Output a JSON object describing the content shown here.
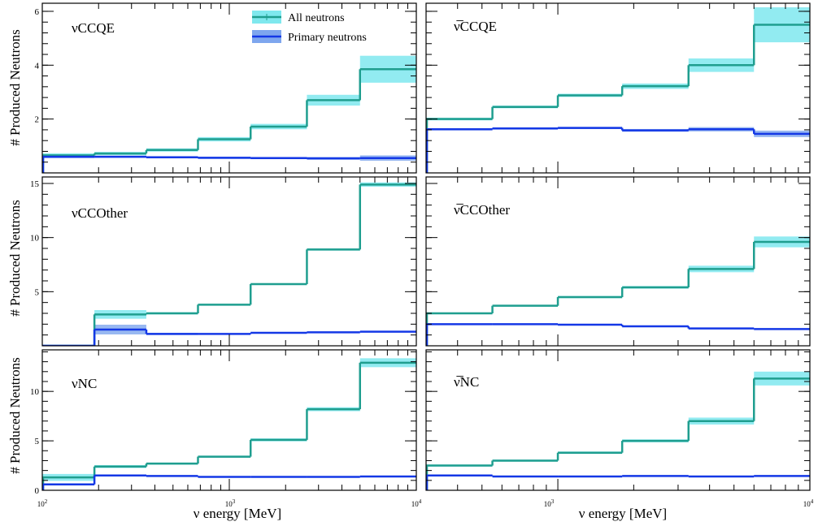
{
  "colors": {
    "all_line": "#1f9e8f",
    "all_band": "#7fe8ee",
    "primary_line": "#1438e6",
    "primary_band": "#7ea6ee"
  },
  "legend": {
    "all_label": "All neutrons",
    "primary_label": "Primary neutrons"
  },
  "axes": {
    "ylabel": "# Produced Neutrons",
    "xlabel": "ν energy [MeV]",
    "x_tick_labels": [
      "10",
      "10",
      "10"
    ],
    "x_tick_exponents": [
      "2",
      "3",
      "4"
    ]
  },
  "chart_data": [
    {
      "type": "line",
      "title": "νCCQE",
      "xscale": "log",
      "xlim": [
        100,
        10000
      ],
      "ylim": [
        0,
        6.3
      ],
      "yticks": [
        2,
        4,
        6
      ],
      "ytick_labels": [
        "2",
        "4",
        "6"
      ],
      "bin_edges": [
        100,
        190,
        360,
        680,
        1300,
        2600,
        5000,
        10000
      ],
      "series": [
        {
          "name": "All neutrons",
          "values": [
            0.65,
            0.72,
            0.85,
            1.25,
            1.72,
            2.7,
            3.85
          ],
          "err": [
            0.08,
            0.06,
            0.06,
            0.08,
            0.1,
            0.2,
            0.5
          ]
        },
        {
          "name": "Primary neutrons",
          "values": [
            0.6,
            0.6,
            0.58,
            0.56,
            0.55,
            0.54,
            0.55
          ],
          "err": [
            0.05,
            0.04,
            0.04,
            0.04,
            0.04,
            0.05,
            0.1
          ]
        }
      ]
    },
    {
      "type": "line",
      "title": "ν̅CCQE",
      "xscale": "log",
      "xlim": [
        300,
        10000
      ],
      "ylim": [
        0,
        6.3
      ],
      "yticks": [
        2,
        4,
        6
      ],
      "ytick_labels": [],
      "bin_edges": [
        300,
        550,
        1000,
        1800,
        3300,
        6000,
        10000
      ],
      "series": [
        {
          "name": "All neutrons",
          "values": [
            2.0,
            2.45,
            2.88,
            3.22,
            4.0,
            5.5
          ],
          "err": [
            0.05,
            0.05,
            0.06,
            0.1,
            0.25,
            0.65
          ]
        },
        {
          "name": "Primary neutrons",
          "values": [
            1.62,
            1.65,
            1.67,
            1.58,
            1.62,
            1.45
          ],
          "err": [
            0.04,
            0.04,
            0.04,
            0.05,
            0.08,
            0.12
          ]
        }
      ]
    },
    {
      "type": "line",
      "title": "νCCOther",
      "xscale": "log",
      "xlim": [
        100,
        10000
      ],
      "ylim": [
        0,
        15.6
      ],
      "yticks": [
        5,
        10,
        15
      ],
      "ytick_labels": [
        "5",
        "10",
        "15"
      ],
      "bin_edges": [
        100,
        190,
        360,
        680,
        1300,
        2600,
        5000,
        10000
      ],
      "series": [
        {
          "name": "All neutrons",
          "values": [
            0,
            2.9,
            3.0,
            3.8,
            5.7,
            8.9,
            14.9
          ],
          "err": [
            0,
            0.4,
            0.1,
            0.08,
            0.08,
            0.1,
            0.2
          ]
        },
        {
          "name": "Primary neutrons",
          "values": [
            0,
            1.5,
            1.1,
            1.1,
            1.2,
            1.25,
            1.3
          ],
          "err": [
            0,
            0.45,
            0.1,
            0.05,
            0.05,
            0.05,
            0.05
          ]
        }
      ]
    },
    {
      "type": "line",
      "title": "ν̅CCOther",
      "xscale": "log",
      "xlim": [
        300,
        10000
      ],
      "ylim": [
        0,
        15.6
      ],
      "yticks": [
        5,
        10,
        15
      ],
      "ytick_labels": [],
      "bin_edges": [
        300,
        550,
        1000,
        1800,
        3300,
        6000,
        10000
      ],
      "series": [
        {
          "name": "All neutrons",
          "values": [
            3.0,
            3.7,
            4.5,
            5.4,
            7.1,
            9.6
          ],
          "err": [
            0.08,
            0.08,
            0.1,
            0.12,
            0.3,
            0.5
          ]
        },
        {
          "name": "Primary neutrons",
          "values": [
            2.0,
            2.0,
            1.95,
            1.8,
            1.6,
            1.55
          ],
          "err": [
            0.05,
            0.05,
            0.05,
            0.05,
            0.06,
            0.06
          ]
        }
      ]
    },
    {
      "type": "line",
      "title": "νNC",
      "xscale": "log",
      "xlim": [
        100,
        10000
      ],
      "ylim": [
        0,
        14.2
      ],
      "yticks": [
        0,
        5,
        10
      ],
      "ytick_labels": [
        "0",
        "5",
        "10"
      ],
      "bin_edges": [
        100,
        190,
        360,
        680,
        1300,
        2600,
        5000,
        10000
      ],
      "series": [
        {
          "name": "All neutrons",
          "values": [
            1.3,
            2.4,
            2.7,
            3.4,
            5.1,
            8.2,
            12.9
          ],
          "err": [
            0.35,
            0.15,
            0.1,
            0.1,
            0.15,
            0.2,
            0.45
          ]
        },
        {
          "name": "Primary neutrons",
          "values": [
            0.6,
            1.5,
            1.45,
            1.35,
            1.35,
            1.35,
            1.4
          ],
          "err": [
            0.1,
            0.08,
            0.05,
            0.05,
            0.05,
            0.05,
            0.05
          ]
        }
      ]
    },
    {
      "type": "line",
      "title": "ν̅NC",
      "xscale": "log",
      "xlim": [
        300,
        10000
      ],
      "ylim": [
        0,
        14.2
      ],
      "yticks": [
        0,
        5,
        10
      ],
      "ytick_labels": [],
      "bin_edges": [
        300,
        550,
        1000,
        1800,
        3300,
        6000,
        10000
      ],
      "series": [
        {
          "name": "All neutrons",
          "values": [
            2.5,
            3.0,
            3.8,
            5.0,
            7.0,
            11.3
          ],
          "err": [
            0.1,
            0.1,
            0.12,
            0.15,
            0.35,
            0.7
          ]
        },
        {
          "name": "Primary neutrons",
          "values": [
            1.5,
            1.4,
            1.4,
            1.45,
            1.4,
            1.45
          ],
          "err": [
            0.04,
            0.04,
            0.04,
            0.04,
            0.04,
            0.05
          ]
        }
      ]
    }
  ]
}
